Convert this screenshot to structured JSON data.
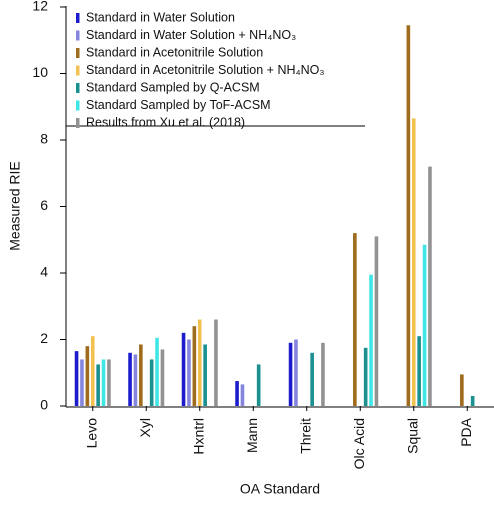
{
  "chart_data": {
    "type": "bar",
    "x_label": "OA Standard",
    "y_label": "Measured RIE",
    "categories": [
      "Levo",
      "Xyl",
      "Hxntrl",
      "Mann",
      "Threit",
      "Olc Acid",
      "Squal",
      "PDA"
    ],
    "ylim": [
      0,
      12
    ],
    "yticks": [
      0,
      2,
      4,
      6,
      8,
      10,
      12
    ],
    "series": [
      {
        "name": "Standard in Water Solution",
        "color": "#1c1ccc",
        "values": [
          1.65,
          1.6,
          2.2,
          0.75,
          1.9,
          null,
          null,
          null
        ]
      },
      {
        "name": "Standard in Water Solution + NH₄NO₃",
        "color": "#8585e0",
        "values": [
          1.4,
          1.55,
          2.0,
          0.65,
          2.0,
          null,
          null,
          null
        ]
      },
      {
        "name": "Standard in Acetonitrile Solution",
        "color": "#9e6c1c",
        "values": [
          1.8,
          1.85,
          2.4,
          null,
          null,
          5.2,
          11.45,
          0.95
        ]
      },
      {
        "name": "Standard in Acetonitrile Solution + NH₄NO₃",
        "color": "#f2c150",
        "values": [
          2.1,
          null,
          2.6,
          null,
          null,
          null,
          8.65,
          null
        ]
      },
      {
        "name": "Standard Sampled by Q-ACSM",
        "color": "#1a9090",
        "values": [
          1.25,
          1.4,
          1.85,
          1.25,
          1.6,
          1.75,
          2.1,
          0.3
        ]
      },
      {
        "name": "Standard Sampled by ToF-ACSM",
        "color": "#3fe6e6",
        "values": [
          1.4,
          2.05,
          null,
          null,
          null,
          3.95,
          4.85,
          null
        ]
      },
      {
        "name": "Results from Xu et al. (2018)",
        "color": "#929292",
        "values": [
          1.4,
          1.7,
          2.6,
          null,
          1.9,
          5.1,
          7.2,
          null
        ]
      }
    ]
  }
}
